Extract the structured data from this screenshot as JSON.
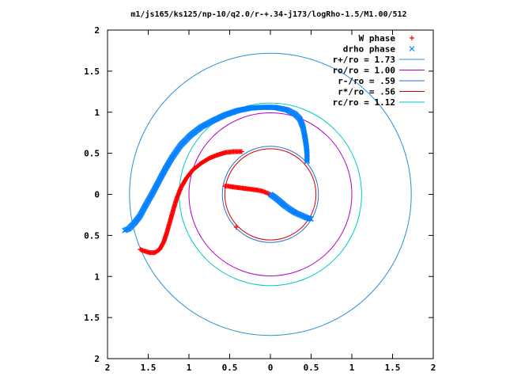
{
  "chart_data": {
    "type": "scatter",
    "title": "m1/js165/ks125/np-10/q2.0/r-+.34-j173/logRho-1.5/M1.00/512",
    "xlabel": "",
    "ylabel": "",
    "xlim": [
      -2,
      2
    ],
    "ylim": [
      -2,
      2
    ],
    "x_tick_labels": [
      "2",
      "1.5",
      "1",
      "0.5",
      "0",
      "0.5",
      "1",
      "1.5",
      "2"
    ],
    "y_tick_labels": [
      "2",
      "1.5",
      "1",
      "0.5",
      "0",
      "0.5",
      "1",
      "1.5",
      "2"
    ],
    "legend_position": "top-right",
    "grid": false,
    "series": [
      {
        "name": "W phase",
        "marker": "+",
        "color": "#ff0000",
        "points": [
          [
            0.0,
            0.0
          ],
          [
            -0.05,
            0.02
          ],
          [
            -0.1,
            0.04
          ],
          [
            -0.15,
            0.05
          ],
          [
            -0.22,
            0.06
          ],
          [
            -0.3,
            0.07
          ],
          [
            -0.38,
            0.08
          ],
          [
            -0.46,
            0.09
          ],
          [
            -0.52,
            0.1
          ],
          [
            -0.56,
            0.1
          ],
          [
            -0.35,
            0.52
          ],
          [
            -0.45,
            0.52
          ],
          [
            -0.55,
            0.51
          ],
          [
            -0.65,
            0.48
          ],
          [
            -0.75,
            0.44
          ],
          [
            -0.85,
            0.38
          ],
          [
            -0.95,
            0.3
          ],
          [
            -1.03,
            0.2
          ],
          [
            -1.1,
            0.08
          ],
          [
            -1.15,
            -0.05
          ],
          [
            -1.19,
            -0.18
          ],
          [
            -1.23,
            -0.32
          ],
          [
            -1.27,
            -0.46
          ],
          [
            -1.31,
            -0.58
          ],
          [
            -1.36,
            -0.67
          ],
          [
            -1.42,
            -0.71
          ],
          [
            -1.48,
            -0.71
          ],
          [
            -1.55,
            -0.69
          ],
          [
            -1.6,
            -0.67
          ],
          [
            -0.42,
            -0.4
          ]
        ]
      },
      {
        "name": "drho phase",
        "marker": "x",
        "color": "#0080ff",
        "points": [
          [
            0.0,
            0.0
          ],
          [
            0.06,
            -0.04
          ],
          [
            0.12,
            -0.09
          ],
          [
            0.18,
            -0.14
          ],
          [
            0.25,
            -0.19
          ],
          [
            0.32,
            -0.23
          ],
          [
            0.39,
            -0.26
          ],
          [
            0.46,
            -0.29
          ],
          [
            0.5,
            -0.3
          ],
          [
            0.45,
            0.4
          ],
          [
            0.45,
            0.5
          ],
          [
            0.44,
            0.6
          ],
          [
            0.42,
            0.72
          ],
          [
            0.4,
            0.82
          ],
          [
            0.36,
            0.92
          ],
          [
            0.3,
            0.98
          ],
          [
            0.2,
            1.03
          ],
          [
            0.05,
            1.06
          ],
          [
            -0.1,
            1.06
          ],
          [
            -0.25,
            1.05
          ],
          [
            -0.4,
            1.02
          ],
          [
            -0.55,
            0.97
          ],
          [
            -0.7,
            0.9
          ],
          [
            -0.85,
            0.82
          ],
          [
            -0.98,
            0.72
          ],
          [
            -1.1,
            0.6
          ],
          [
            -1.2,
            0.46
          ],
          [
            -1.29,
            0.31
          ],
          [
            -1.37,
            0.16
          ],
          [
            -1.45,
            0.01
          ],
          [
            -1.53,
            -0.13
          ],
          [
            -1.6,
            -0.26
          ],
          [
            -1.67,
            -0.35
          ],
          [
            -1.74,
            -0.42
          ],
          [
            -1.79,
            -0.44
          ]
        ]
      },
      {
        "name": "r+/ro = 1.73",
        "type": "circle",
        "radius": 1.73,
        "color": "#2a8fd0"
      },
      {
        "name": "ro/ro = 1.00",
        "type": "circle",
        "radius": 1.0,
        "color": "#b400c8"
      },
      {
        "name": "r-/ro = .59",
        "type": "circle",
        "radius": 0.59,
        "color": "#2a6fd0"
      },
      {
        "name": "r*/ro = .56",
        "type": "circle",
        "radius": 0.56,
        "color": "#d00000"
      },
      {
        "name": "rc/ro = 1.12",
        "type": "circle",
        "radius": 1.12,
        "color": "#00c8c8"
      }
    ]
  }
}
